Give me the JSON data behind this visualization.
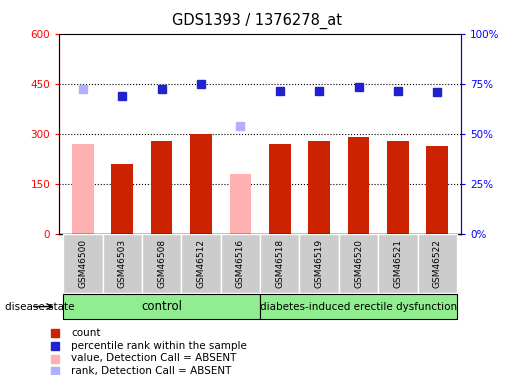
{
  "title": "GDS1393 / 1376278_at",
  "samples": [
    "GSM46500",
    "GSM46503",
    "GSM46508",
    "GSM46512",
    "GSM46516",
    "GSM46518",
    "GSM46519",
    "GSM46520",
    "GSM46521",
    "GSM46522"
  ],
  "bar_values": [
    270,
    210,
    280,
    300,
    180,
    270,
    280,
    290,
    280,
    265
  ],
  "bar_colors": [
    "#ffb0b0",
    "#cc2200",
    "#cc2200",
    "#cc2200",
    "#ffb0b0",
    "#cc2200",
    "#cc2200",
    "#cc2200",
    "#cc2200",
    "#cc2200"
  ],
  "rank_values": [
    72.5,
    69.2,
    72.5,
    75.0,
    54.2,
    71.7,
    71.7,
    73.3,
    71.7,
    70.8
  ],
  "rank_colors": [
    "#b0b0ff",
    "#2222cc",
    "#2222cc",
    "#2222cc",
    "#b0b0ff",
    "#2222cc",
    "#2222cc",
    "#2222cc",
    "#2222cc",
    "#2222cc"
  ],
  "ylim_left": [
    0,
    600
  ],
  "ylim_right": [
    0,
    100
  ],
  "yticks_left": [
    0,
    150,
    300,
    450,
    600
  ],
  "ytick_labels_left": [
    "0",
    "150",
    "300",
    "450",
    "600"
  ],
  "hlines": [
    150,
    300,
    450
  ],
  "control_count": 5,
  "control_label": "control",
  "disease_label": "diabetes-induced erectile dysfunction",
  "group_label": "disease state",
  "legend_entries": [
    {
      "label": "count",
      "color": "#cc2200"
    },
    {
      "label": "percentile rank within the sample",
      "color": "#2222cc"
    },
    {
      "label": "value, Detection Call = ABSENT",
      "color": "#ffb0b0"
    },
    {
      "label": "rank, Detection Call = ABSENT",
      "color": "#b0b0ff"
    }
  ],
  "bar_width": 0.55,
  "xlabel_area_color": "#cccccc",
  "green_color": "#90ee90",
  "fig_width": 5.15,
  "fig_height": 3.75
}
